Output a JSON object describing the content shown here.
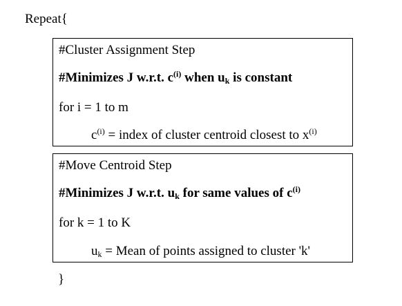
{
  "repeat_open": "Repeat{",
  "repeat_close": "}",
  "cluster_block": {
    "title": "#Cluster Assignment  Step",
    "bold_prefix": "#Minimizes J w.r.t. c",
    "bold_sup": "(i)",
    "bold_mid": " when u",
    "bold_sub": "k",
    "bold_suffix": " is constant",
    "loop": "for i = 1 to m",
    "stmt_var": "c",
    "stmt_var_sup": "(i)",
    "stmt_text": " = index of cluster centroid closest to x",
    "stmt_text_sup": "(i)"
  },
  "centroid_block": {
    "title": "#Move Centroid Step",
    "bold_prefix": "#Minimizes J w.r.t. u",
    "bold_sub": "k",
    "bold_mid": " for same values of c",
    "bold_sup": "(i)",
    "loop": "for k = 1 to K",
    "stmt_var": "u",
    "stmt_var_sub": "k",
    "stmt_text": " = Mean of points assigned to cluster 'k'"
  }
}
